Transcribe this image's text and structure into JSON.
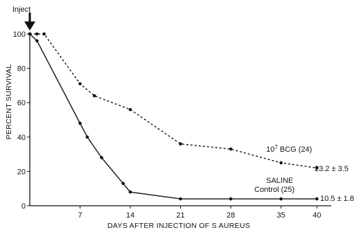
{
  "colors": {
    "ink": "#111111",
    "background": "#ffffff"
  },
  "chart_data": {
    "type": "line",
    "title": "",
    "xlabel": "DAYS AFTER INJECTION OF S AUREUS",
    "ylabel": "PERCENT SURVIVAL",
    "xlim": [
      0,
      42
    ],
    "ylim": [
      0,
      100
    ],
    "x_ticks": [
      7,
      14,
      21,
      28,
      35,
      40
    ],
    "y_ticks": [
      0,
      20,
      40,
      60,
      80,
      100
    ],
    "grid": false,
    "legend": "none",
    "series": [
      {
        "name": "10⁷ BCG (24)",
        "style": "dashed",
        "x": [
          0,
          1,
          2,
          7,
          9,
          14,
          21,
          28,
          35,
          40
        ],
        "y": [
          100,
          100,
          100,
          71,
          64,
          56,
          36,
          33,
          25,
          22
        ],
        "final_value_label": "23.2 ± 3.5"
      },
      {
        "name": "SALINE Control (25)",
        "style": "solid",
        "x": [
          0,
          1,
          7,
          8,
          10,
          13,
          14,
          21,
          28,
          35,
          40
        ],
        "y": [
          100,
          96,
          48,
          40,
          28,
          13,
          8,
          4,
          4,
          4,
          4
        ],
        "final_value_label": "10.5 ± 1.8"
      }
    ],
    "annotations": [
      {
        "text": "Inject",
        "arrow": "down",
        "x": 0
      }
    ]
  },
  "labels": {
    "bcg_prefix": "10",
    "bcg_exponent": "7",
    "bcg_suffix": " BCG (24)",
    "saline_line1": "SALINE",
    "saline_line2": "Control (25)"
  }
}
